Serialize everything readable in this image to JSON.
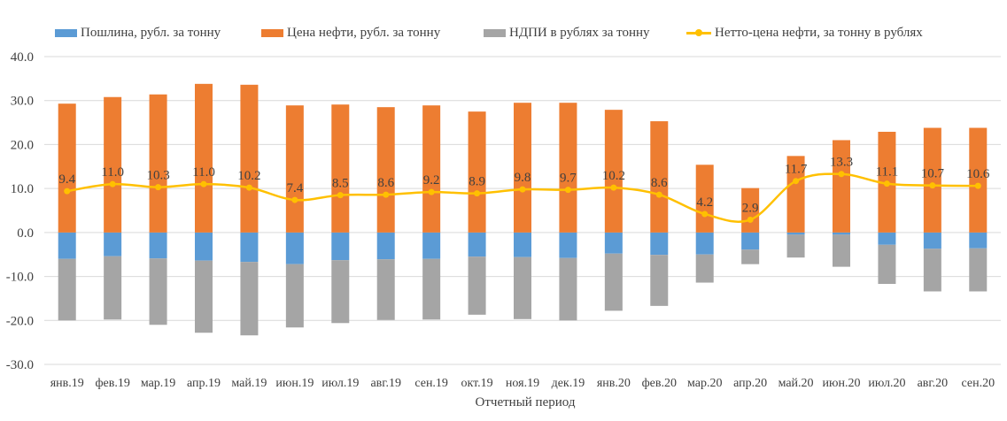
{
  "chart_data": {
    "type": "bar",
    "stacked": true,
    "categories": [
      "янв.19",
      "фев.19",
      "мар.19",
      "апр.19",
      "май.19",
      "июн.19",
      "июл.19",
      "авг.19",
      "сен.19",
      "окт.19",
      "ноя.19",
      "дек.19",
      "янв.20",
      "фев.20",
      "мар.20",
      "апр.20",
      "май.20",
      "июн.20",
      "июл.20",
      "авг.20",
      "сен.20"
    ],
    "series": [
      {
        "name": "Пошлина, рубл. за тонну",
        "kind": "bar",
        "color": "#5b9bd5",
        "values": [
          -6.0,
          -5.4,
          -5.9,
          -6.4,
          -6.7,
          -7.2,
          -6.3,
          -6.1,
          -6.0,
          -5.5,
          -5.6,
          -5.8,
          -4.8,
          -5.1,
          -5.0,
          -3.9,
          -0.5,
          -0.5,
          -2.8,
          -3.7,
          -3.6
        ]
      },
      {
        "name": "Цена нефти, рубл. за тонну",
        "kind": "bar",
        "color": "#ed7d31",
        "values": [
          29.3,
          30.8,
          31.4,
          33.8,
          33.6,
          28.9,
          29.1,
          28.5,
          28.9,
          27.5,
          29.5,
          29.5,
          27.9,
          25.3,
          15.4,
          10.1,
          17.4,
          21.0,
          22.9,
          23.8,
          23.8
        ]
      },
      {
        "name": "НДПИ в рублях за тонну",
        "kind": "bar",
        "color": "#a5a5a5",
        "values": [
          -14.0,
          -14.4,
          -15.1,
          -16.4,
          -16.7,
          -14.4,
          -14.3,
          -13.8,
          -13.8,
          -13.2,
          -14.1,
          -14.2,
          -13.0,
          -11.6,
          -6.4,
          -3.3,
          -5.2,
          -7.3,
          -8.9,
          -9.7,
          -9.8
        ]
      },
      {
        "name": "Нетто-цена нефти, за тонну в рублях",
        "kind": "line",
        "color": "#ffc000",
        "values": [
          9.4,
          11.0,
          10.3,
          11.0,
          10.2,
          7.4,
          8.5,
          8.6,
          9.2,
          8.9,
          9.8,
          9.7,
          10.2,
          8.6,
          4.2,
          2.9,
          11.7,
          13.3,
          11.1,
          10.7,
          10.6
        ]
      }
    ],
    "data_labels": [
      "9.4",
      "11.0",
      "10.3",
      "11.0",
      "10.2",
      "7.4",
      "8.5",
      "8.6",
      "9.2",
      "8.9",
      "9.8",
      "9.7",
      "10.2",
      "8.6",
      "4.2",
      "2.9",
      "11.7",
      "13.3",
      "11.1",
      "10.7",
      "10.6"
    ],
    "y_ticks": [
      "40.0",
      "30.0",
      "20.0",
      "10.0",
      "0.0",
      "-10.0",
      "-20.0",
      "-30.0"
    ],
    "ylim": [
      -30,
      40
    ],
    "xlabel": "Отчетный период",
    "ylabel": "",
    "title": "",
    "grid": true,
    "legend_position": "top"
  }
}
